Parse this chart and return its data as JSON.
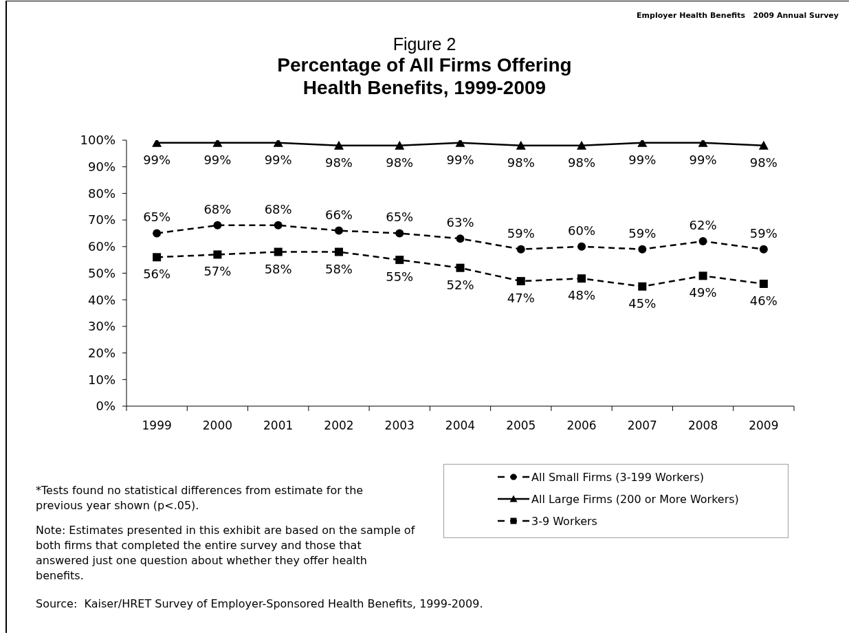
{
  "chart_data": {
    "type": "line",
    "title": "Figure 2",
    "subtitle": "Percentage of All Firms Offering Health Benefits, 1999-2009",
    "categories": [
      "1999",
      "2000",
      "2001",
      "2002",
      "2003",
      "2004",
      "2005",
      "2006",
      "2007",
      "2008",
      "2009"
    ],
    "series": [
      {
        "name": "All Small Firms (3-199 Workers)",
        "color": "#000000",
        "marker": "circle",
        "line_style": "dashed",
        "values": [
          65,
          68,
          68,
          66,
          65,
          63,
          59,
          60,
          59,
          62,
          59
        ],
        "value_labels": [
          "65%",
          "68%",
          "68%",
          "66%",
          "65%",
          "63%",
          "59%",
          "60%",
          "59%",
          "62%",
          "59%"
        ]
      },
      {
        "name": "All Large Firms (200 or More Workers)",
        "color": "#000000",
        "marker": "triangle",
        "line_style": "solid",
        "values": [
          99,
          99,
          99,
          98,
          98,
          99,
          98,
          98,
          99,
          99,
          98
        ],
        "value_labels": [
          "99%",
          "99%",
          "99%",
          "98%",
          "98%",
          "99%",
          "98%",
          "98%",
          "99%",
          "99%",
          "98%"
        ]
      },
      {
        "name": "3-9 Workers",
        "color": "#000000",
        "marker": "square",
        "line_style": "dashed",
        "values": [
          56,
          57,
          58,
          58,
          55,
          52,
          47,
          48,
          45,
          49,
          46
        ],
        "value_labels": [
          "56%",
          "57%",
          "58%",
          "58%",
          "55%",
          "52%",
          "47%",
          "48%",
          "45%",
          "49%",
          "46%"
        ]
      }
    ],
    "ylim": [
      0,
      100
    ],
    "yticks": [
      {
        "value": 0,
        "label": "0%"
      },
      {
        "value": 10,
        "label": "10%"
      },
      {
        "value": 20,
        "label": "20%"
      },
      {
        "value": 30,
        "label": "30%"
      },
      {
        "value": 40,
        "label": "40%"
      },
      {
        "value": 50,
        "label": "50%"
      },
      {
        "value": 60,
        "label": "60%"
      },
      {
        "value": 70,
        "label": "70%"
      },
      {
        "value": 80,
        "label": "80%"
      },
      {
        "value": 90,
        "label": "90%"
      },
      {
        "value": 100,
        "label": "100%"
      }
    ],
    "legend": "bottom right",
    "annotations": [
      "Employer Health Benefits   2009 Annual Survey",
      "*Tests found no statistical differences from estimate for the previous year shown (p<.05).",
      "Note: Estimates presented in this exhibit are based on the sample of both firms that completed the entire survey and those that answered just one question about whether they offer health benefits.",
      "Source:  Kaiser/HRET Survey of Employer-Sponsored Health Benefits, 1999-2009."
    ]
  }
}
